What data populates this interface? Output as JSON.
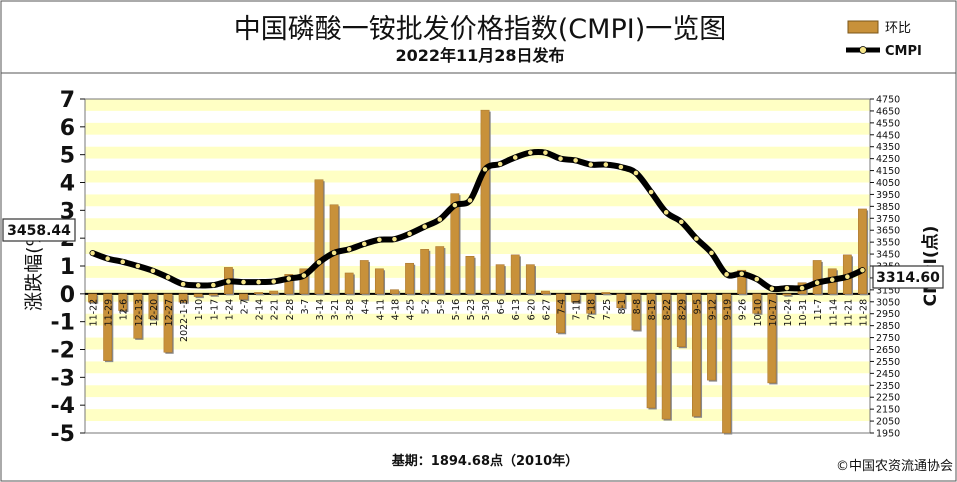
{
  "header": {
    "title": "中国磷酸一铵批发价格指数(CMPI)一览图",
    "subtitle": "2022年11月28日发布"
  },
  "legend": {
    "bar_label": "环比",
    "line_label": "CMPI"
  },
  "footer": {
    "base_note": "基期：1894.68点（2010年）",
    "copyright": "©中国农资流通协会"
  },
  "callouts": {
    "start_value": "3458.44",
    "end_value": "3314.60"
  },
  "colors": {
    "plot_band": "#ffffc4",
    "bar": "#c8913a",
    "line": "#000000",
    "marker": "#f5e58a"
  },
  "chart_data": {
    "type": "bar",
    "categories": [
      "11-22",
      "11-29",
      "12-6",
      "12-13",
      "12-20",
      "12-27",
      "2022-1-3",
      "1-10",
      "1-17",
      "1-24",
      "2-7",
      "2-14",
      "2-21",
      "2-28",
      "3-7",
      "3-14",
      "3-21",
      "3-28",
      "4-4",
      "4-11",
      "4-18",
      "4-25",
      "5-2",
      "5-9",
      "5-16",
      "5-23",
      "5-30",
      "6-6",
      "6-13",
      "6-20",
      "6-27",
      "7-4",
      "7-11",
      "7-18",
      "7-25",
      "8-1",
      "8-8",
      "8-15",
      "8-22",
      "8-29",
      "9-5",
      "9-12",
      "9-19",
      "9-26",
      "10-10",
      "10-17",
      "10-24",
      "10-31",
      "11-7",
      "11-14",
      "11-21",
      "11-28"
    ],
    "series": [
      {
        "name": "环比",
        "type": "bar",
        "axis": "left",
        "values": [
          -0.3,
          -2.4,
          -0.6,
          -1.6,
          -0.9,
          -2.1,
          -0.3,
          -0.1,
          -0.05,
          0.95,
          -0.2,
          0.05,
          0.1,
          0.7,
          0.9,
          4.1,
          3.2,
          0.75,
          1.2,
          0.9,
          0.15,
          1.1,
          1.6,
          1.7,
          3.6,
          1.35,
          6.6,
          1.05,
          1.4,
          1.05,
          0.1,
          -1.4,
          -0.3,
          -0.7,
          0.05,
          -0.5,
          -1.3,
          -4.1,
          -4.5,
          -1.9,
          -4.4,
          -3.1,
          -5.0,
          0.85,
          -0.7,
          -3.2,
          -0.05,
          0.4,
          1.2,
          0.9,
          1.4,
          3.05
        ]
      },
      {
        "name": "CMPI",
        "type": "line",
        "axis": "right",
        "values": [
          3458,
          3412,
          3385,
          3350,
          3310,
          3255,
          3198,
          3188,
          3190,
          3220,
          3215,
          3215,
          3220,
          3245,
          3270,
          3380,
          3460,
          3490,
          3535,
          3570,
          3575,
          3620,
          3680,
          3740,
          3860,
          3900,
          4160,
          4205,
          4260,
          4300,
          4300,
          4250,
          4235,
          4200,
          4200,
          4180,
          4130,
          3970,
          3800,
          3720,
          3580,
          3460,
          3280,
          3285,
          3240,
          3160,
          3165,
          3165,
          3210,
          3235,
          3260,
          3315
        ]
      }
    ],
    "left_axis": {
      "label": "涨跌幅(%)",
      "range": [
        -5,
        7
      ],
      "ticks": [
        7,
        6,
        5,
        4,
        3,
        2,
        1,
        0,
        -1,
        -2,
        -3,
        -4,
        -5
      ]
    },
    "right_axis": {
      "label": "CMPI(点)",
      "range": [
        1950,
        4750
      ],
      "ticks": [
        4750,
        4650,
        4550,
        4450,
        4350,
        4250,
        4150,
        4050,
        3950,
        3850,
        3750,
        3650,
        3550,
        3450,
        3350,
        3250,
        3150,
        3050,
        2950,
        2850,
        2750,
        2650,
        2550,
        2450,
        2350,
        2250,
        2150,
        2050,
        1950
      ]
    },
    "legend_position": "top-right",
    "grid": "horizontal bands"
  }
}
